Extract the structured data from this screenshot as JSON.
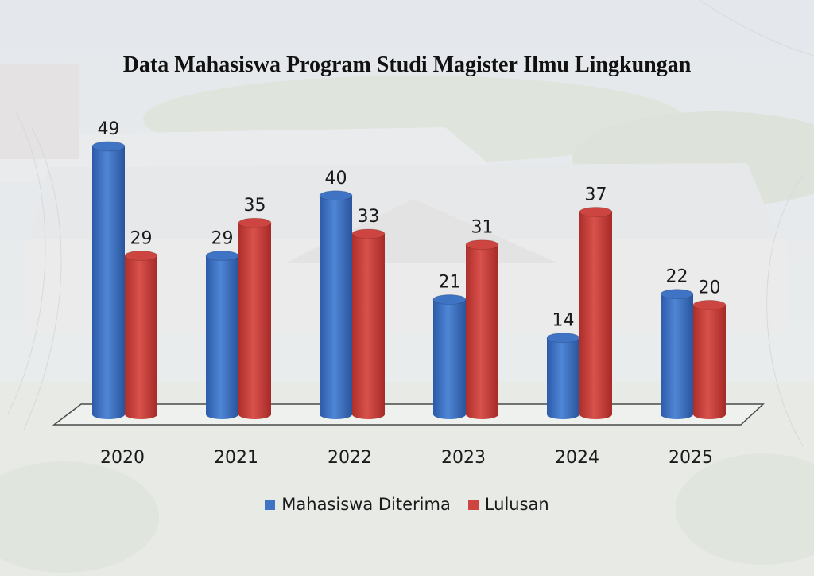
{
  "colors": {
    "series_1": "#3f73c4",
    "series_2": "#cd4540"
  },
  "chart_data": {
    "type": "bar",
    "title": "Data Mahasiswa Program Studi Magister Ilmu Lingkungan",
    "categories": [
      "2020",
      "2021",
      "2022",
      "2023",
      "2024",
      "2025"
    ],
    "series": [
      {
        "name": "Mahasiswa Diterima",
        "values": [
          49,
          29,
          40,
          21,
          14,
          22
        ]
      },
      {
        "name": "Lulusan",
        "values": [
          29,
          35,
          33,
          31,
          37,
          20
        ]
      }
    ],
    "xlabel": "",
    "ylabel": "",
    "ylim": [
      0,
      50
    ],
    "grid": false,
    "legend": "bottom"
  }
}
